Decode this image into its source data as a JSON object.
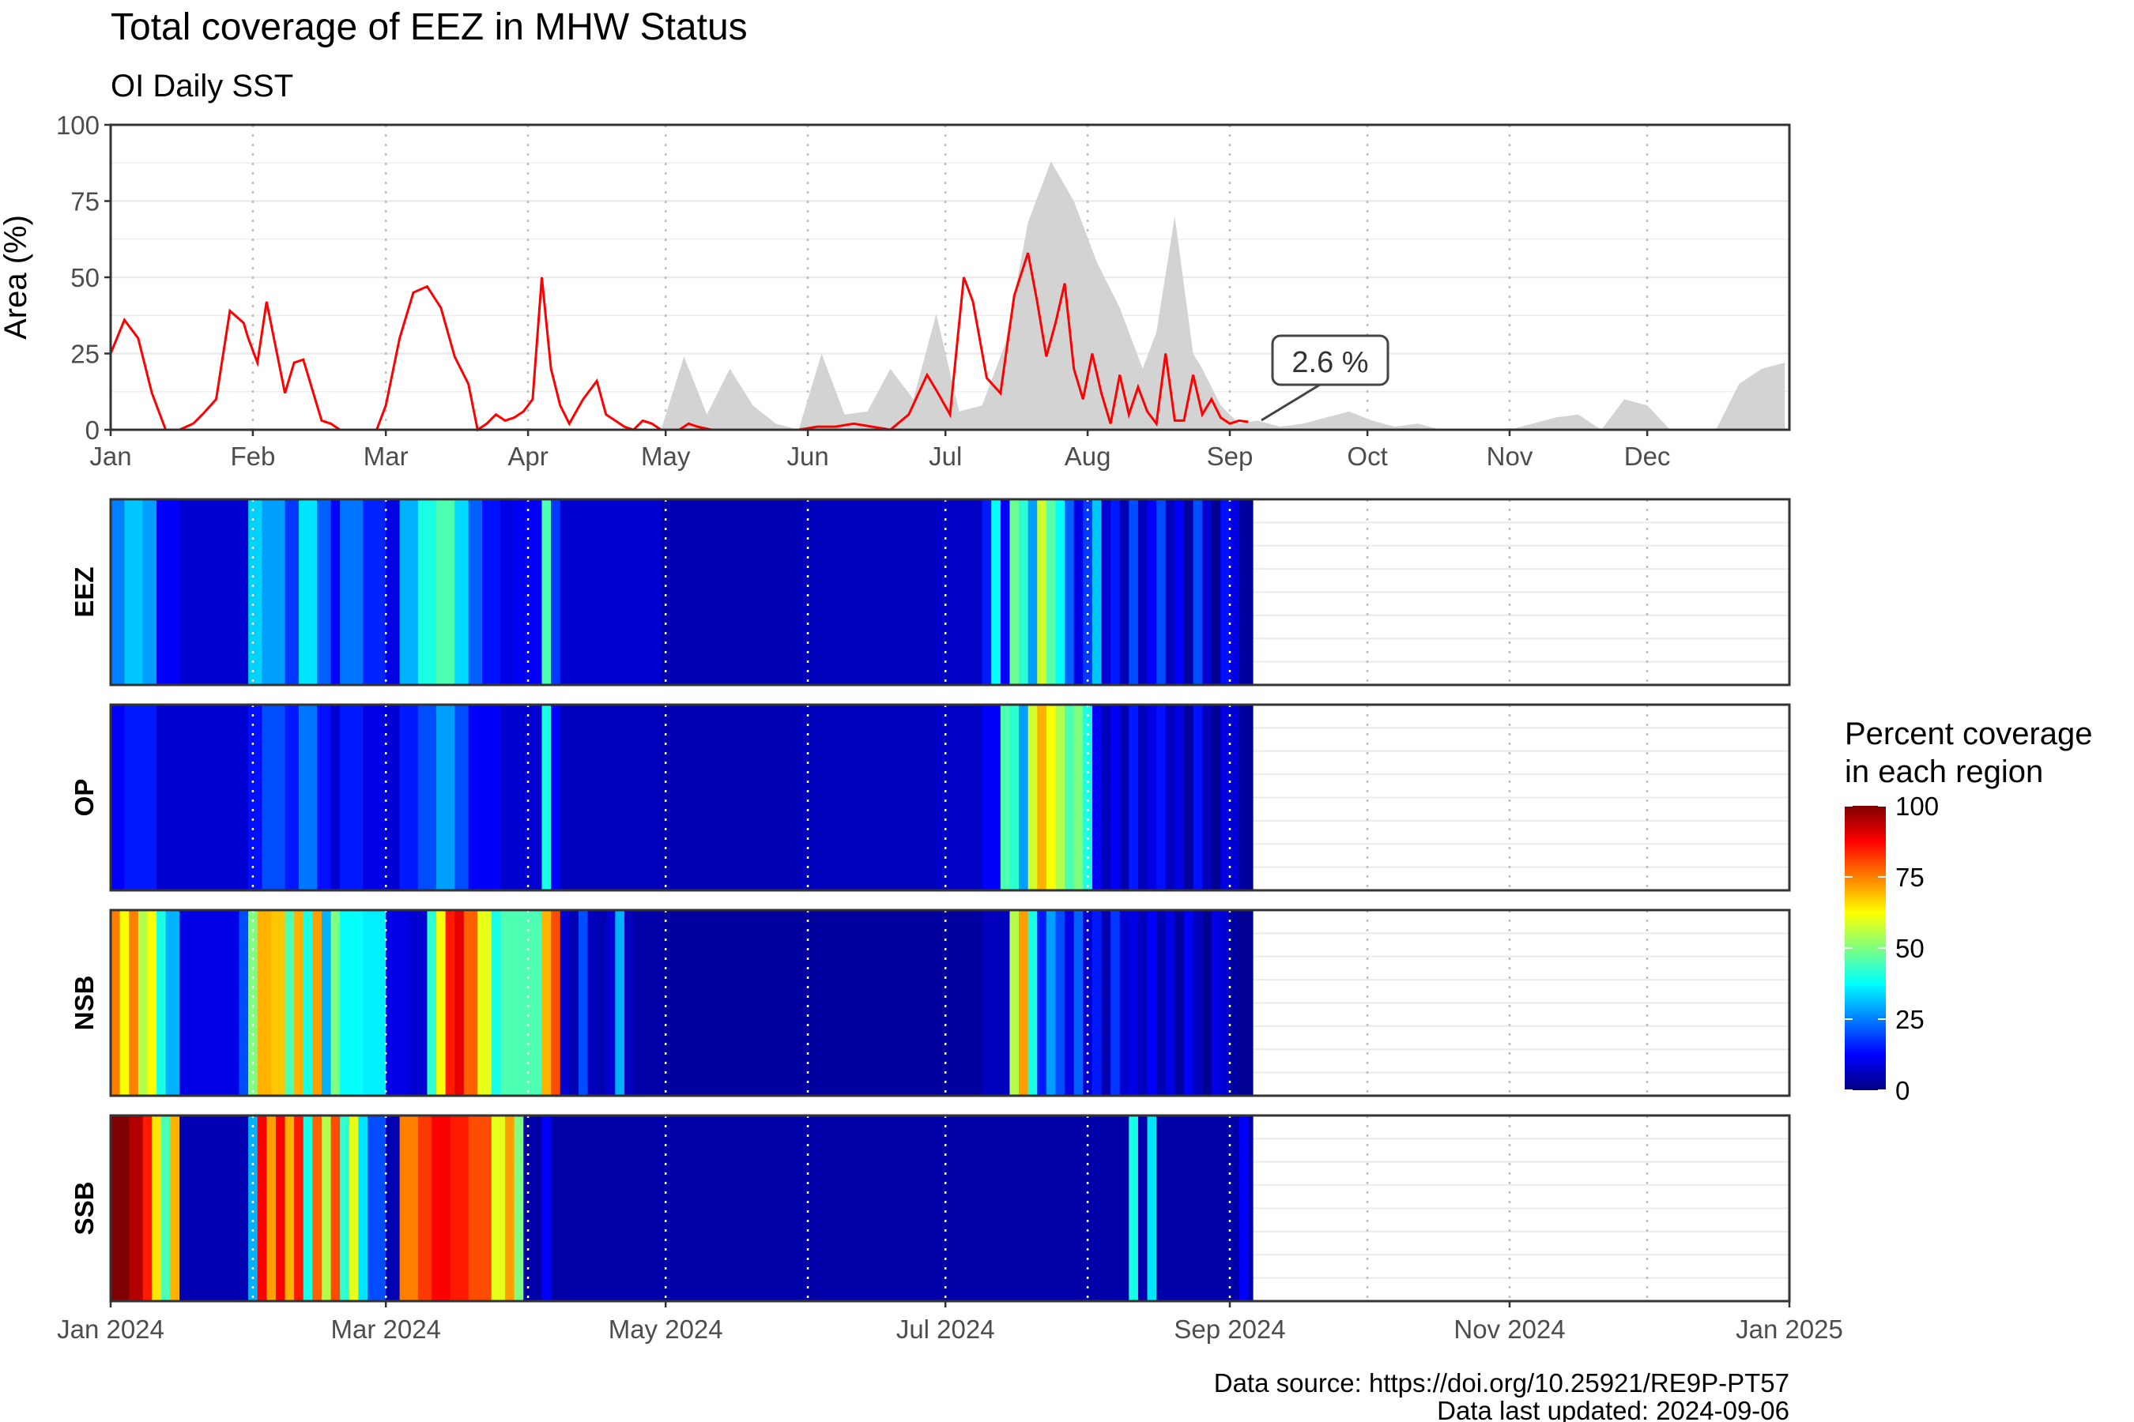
{
  "title": "Total coverage of EEZ in MHW Status",
  "subtitle": "OI Daily SST",
  "colors": {
    "line": "#ff0000",
    "area": "#d3d3d3",
    "heat_stops": [
      "#00007f",
      "#0000ff",
      "#007fff",
      "#00ffff",
      "#7fff7f",
      "#ffff00",
      "#ff7f00",
      "#ff0000",
      "#7f0000"
    ]
  },
  "chart_data": [
    {
      "type": "line",
      "ylabel": "Area (%)",
      "ylim": [
        0,
        100
      ],
      "yticks": [
        0,
        25,
        50,
        75,
        100
      ],
      "xticks": [
        "Jan",
        "Feb",
        "Mar",
        "Apr",
        "May",
        "Jun",
        "Jul",
        "Aug",
        "Sep",
        "Oct",
        "Nov",
        "Dec"
      ],
      "grid": true,
      "annotation": "2.6 %",
      "series": [
        {
          "kind": "line",
          "x_day": [
            0,
            3,
            6,
            9,
            12,
            15,
            18,
            20,
            23,
            26,
            29,
            30,
            32,
            34,
            36,
            38,
            40,
            42,
            44,
            46,
            48,
            50,
            52,
            54,
            56,
            58,
            60,
            63,
            66,
            69,
            72,
            75,
            78,
            80,
            82,
            84,
            86,
            88,
            90,
            92,
            94,
            96,
            98,
            100,
            103,
            106,
            108,
            110,
            112,
            114,
            116,
            118,
            120,
            122,
            124,
            126,
            128,
            131,
            135,
            140,
            145,
            150,
            154,
            158,
            162,
            166,
            170,
            174,
            178,
            180,
            183,
            186,
            188,
            191,
            194,
            197,
            200,
            202,
            204,
            206,
            208,
            210,
            212,
            214,
            216,
            218,
            220,
            222,
            224,
            226,
            228,
            230,
            232,
            234,
            236,
            238,
            240,
            242,
            244,
            246,
            248
          ],
          "values": [
            25,
            36,
            30,
            12,
            0,
            0,
            2,
            5,
            10,
            39,
            35,
            30,
            22,
            42,
            27,
            12,
            22,
            23,
            13,
            3,
            2,
            0,
            0,
            0,
            0,
            0,
            8,
            30,
            45,
            47,
            40,
            24,
            15,
            0,
            2,
            5,
            3,
            4,
            6,
            10,
            50,
            20,
            8,
            2,
            10,
            16,
            5,
            3,
            1,
            0,
            3,
            2,
            0,
            0,
            0,
            2,
            1,
            0,
            0,
            0,
            0,
            0,
            1,
            1,
            2,
            1,
            0,
            5,
            18,
            13,
            5,
            50,
            42,
            17,
            12,
            44,
            58,
            42,
            24,
            35,
            48,
            20,
            10,
            25,
            12,
            2,
            18,
            5,
            14,
            6,
            2,
            25,
            3,
            3,
            18,
            5,
            10,
            4,
            2,
            3,
            2.6
          ]
        },
        {
          "kind": "area",
          "x_day": [
            0,
            120,
            125,
            130,
            135,
            140,
            145,
            150,
            155,
            160,
            165,
            170,
            175,
            180,
            185,
            190,
            195,
            200,
            205,
            210,
            215,
            220,
            225,
            228,
            232,
            236,
            238,
            242,
            246,
            250,
            255,
            260,
            265,
            270,
            275,
            280,
            285,
            290,
            295,
            300,
            305,
            310,
            315,
            320,
            325,
            330,
            335,
            340,
            345,
            350,
            355,
            360,
            365
          ],
          "values": [
            0,
            0,
            24,
            5,
            20,
            8,
            2,
            0,
            25,
            5,
            6,
            20,
            10,
            38,
            6,
            8,
            28,
            68,
            88,
            75,
            55,
            40,
            20,
            32,
            70,
            25,
            20,
            8,
            2,
            3,
            1,
            2,
            4,
            6,
            3,
            1,
            2,
            0,
            0,
            0,
            0,
            2,
            4,
            5,
            0,
            10,
            8,
            0,
            0,
            0,
            15,
            20,
            22
          ]
        }
      ]
    },
    {
      "type": "heatmap",
      "legend_title": "Percent coverage in each region",
      "legend_ticks": [
        0,
        25,
        50,
        75,
        100
      ],
      "xticks": [
        "Jan 2024",
        "Mar 2024",
        "May 2024",
        "Jul 2024",
        "Sep 2024",
        "Nov 2024",
        "Jan 2025"
      ],
      "rows": [
        {
          "name": "EEZ",
          "days": [
            0,
            3,
            7,
            10,
            15,
            30,
            33,
            38,
            41,
            45,
            48,
            50,
            55,
            60,
            63,
            67,
            71,
            75,
            78,
            81,
            85,
            88,
            94,
            96,
            98,
            120,
            150,
            180,
            190,
            192,
            194,
            196,
            198,
            200,
            202,
            204,
            206,
            208,
            210,
            212,
            214,
            216,
            218,
            220,
            222,
            224,
            226,
            228,
            230,
            232,
            234,
            236,
            238,
            240,
            242,
            244,
            246,
            248
          ],
          "values": [
            25,
            32,
            28,
            12,
            8,
            33,
            28,
            18,
            35,
            22,
            12,
            24,
            16,
            10,
            30,
            40,
            45,
            34,
            22,
            14,
            10,
            12,
            45,
            18,
            8,
            5,
            6,
            7,
            15,
            38,
            12,
            48,
            42,
            28,
            58,
            46,
            38,
            22,
            10,
            18,
            32,
            8,
            15,
            5,
            20,
            6,
            12,
            20,
            6,
            12,
            3,
            20,
            8,
            2,
            14,
            10,
            3,
            2.6
          ]
        },
        {
          "name": "OP",
          "days": [
            0,
            3,
            10,
            30,
            33,
            38,
            41,
            45,
            48,
            50,
            55,
            60,
            63,
            67,
            71,
            75,
            78,
            85,
            94,
            96,
            98,
            120,
            150,
            180,
            190,
            194,
            196,
            198,
            200,
            202,
            204,
            206,
            208,
            210,
            212,
            214,
            216,
            218,
            220,
            222,
            224,
            226,
            228,
            230,
            232,
            234,
            236,
            238,
            240,
            242,
            244,
            246,
            248
          ],
          "values": [
            12,
            15,
            8,
            14,
            20,
            15,
            24,
            14,
            8,
            15,
            10,
            8,
            15,
            20,
            28,
            20,
            12,
            8,
            40,
            12,
            6,
            5,
            6,
            7,
            12,
            45,
            42,
            28,
            58,
            70,
            62,
            55,
            45,
            50,
            40,
            12,
            6,
            12,
            5,
            15,
            6,
            10,
            14,
            6,
            10,
            3,
            14,
            6,
            2,
            10,
            8,
            3,
            2
          ]
        },
        {
          "name": "NSB",
          "days": [
            0,
            2,
            4,
            6,
            8,
            10,
            12,
            15,
            28,
            30,
            32,
            35,
            38,
            40,
            42,
            44,
            46,
            48,
            50,
            55,
            60,
            65,
            69,
            71,
            73,
            75,
            77,
            80,
            83,
            85,
            94,
            96,
            98,
            100,
            102,
            104,
            106,
            108,
            110,
            112,
            114,
            120,
            150,
            180,
            190,
            196,
            198,
            200,
            202,
            204,
            206,
            208,
            210,
            212,
            214,
            216,
            218,
            220,
            222,
            224,
            226,
            228,
            230,
            232,
            234,
            236,
            238,
            240,
            242,
            244,
            246,
            248
          ],
          "values": [
            75,
            62,
            75,
            55,
            62,
            40,
            30,
            10,
            20,
            50,
            70,
            68,
            45,
            70,
            40,
            72,
            30,
            50,
            38,
            36,
            10,
            8,
            42,
            62,
            85,
            90,
            78,
            60,
            40,
            45,
            70,
            80,
            8,
            5,
            20,
            6,
            5,
            8,
            30,
            6,
            4,
            3,
            3,
            3,
            6,
            55,
            72,
            40,
            15,
            28,
            20,
            10,
            22,
            8,
            15,
            5,
            18,
            8,
            10,
            6,
            12,
            5,
            10,
            3,
            12,
            6,
            2,
            10,
            8,
            3,
            2,
            2
          ]
        },
        {
          "name": "SSB",
          "days": [
            0,
            4,
            7,
            9,
            11,
            13,
            15,
            30,
            32,
            34,
            36,
            38,
            40,
            42,
            44,
            46,
            48,
            50,
            52,
            54,
            56,
            60,
            63,
            67,
            70,
            74,
            78,
            83,
            86,
            88,
            90,
            94,
            96,
            150,
            220,
            222,
            224,
            226,
            228,
            230,
            232,
            234,
            246,
            248
          ],
          "values": [
            100,
            95,
            85,
            65,
            45,
            70,
            5,
            30,
            88,
            72,
            88,
            70,
            85,
            40,
            78,
            55,
            80,
            42,
            60,
            35,
            20,
            5,
            75,
            82,
            88,
            85,
            80,
            60,
            72,
            50,
            4,
            12,
            4,
            4,
            4,
            40,
            4,
            35,
            4,
            4,
            4,
            4,
            12,
            4
          ]
        }
      ]
    }
  ],
  "footer": {
    "source": "Data source: https://doi.org/10.25921/RE9P-PT57",
    "updated": "Data last updated: 2024-09-06"
  }
}
